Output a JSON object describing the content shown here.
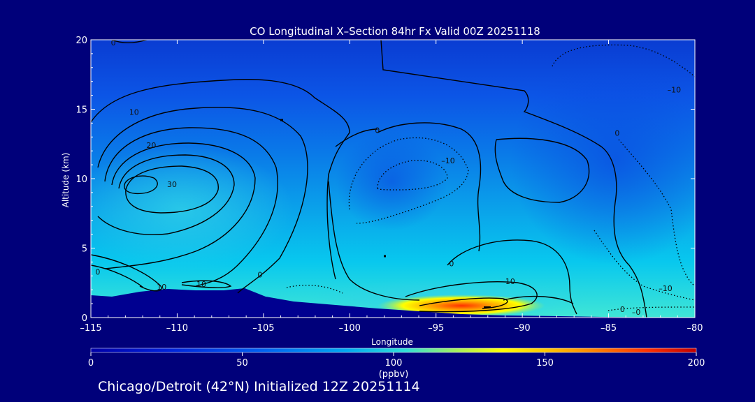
{
  "chart_data": {
    "type": "heatmap",
    "title": "CO Longitudinal X–Section 84hr  Fx Valid 00Z 20251118",
    "xlabel": "Longitude",
    "ylabel": "Altitude (km)",
    "xlim": [
      -115,
      -80
    ],
    "ylim": [
      0,
      20
    ],
    "x_ticks": [
      -115,
      -110,
      -105,
      -100,
      -95,
      -90,
      -85,
      -80
    ],
    "x_tick_labels": [
      "–115",
      "–110",
      "–105",
      "–100",
      "–95",
      "–90",
      "–85",
      "–80"
    ],
    "y_ticks": [
      0,
      5,
      10,
      15,
      20
    ],
    "y_tick_labels": [
      "0",
      "5",
      "10",
      "15",
      "20"
    ],
    "colorbar": {
      "min": 0,
      "max": 200,
      "ticks": [
        0,
        50,
        100,
        150,
        200
      ],
      "tick_labels": [
        "0",
        "50",
        "100",
        "150",
        "200"
      ],
      "unit": "(ppbv)",
      "colors": [
        "#0000a8",
        "#0030e0",
        "#0080f0",
        "#00c0f0",
        "#40e0d0",
        "#a0f060",
        "#ffff00",
        "#ffa000",
        "#ff3000",
        "#c00000"
      ]
    },
    "contour_labels": [
      {
        "text": "0",
        "lon": -113.7,
        "alt": 19.6
      },
      {
        "text": "10",
        "lon": -112.5,
        "alt": 14.6
      },
      {
        "text": "20",
        "lon": -111.5,
        "alt": 12.2
      },
      {
        "text": "30",
        "lon": -110.3,
        "alt": 9.4
      },
      {
        "text": "0",
        "lon": -114.6,
        "alt": 3.1
      },
      {
        "text": "10",
        "lon": -110.9,
        "alt": 2.0
      },
      {
        "text": "10",
        "lon": -108.6,
        "alt": 2.2
      },
      {
        "text": "0",
        "lon": -105.2,
        "alt": 2.9
      },
      {
        "text": "0",
        "lon": -98.4,
        "alt": 13.3
      },
      {
        "text": "–10",
        "lon": -94.3,
        "alt": 11.1
      },
      {
        "text": "0",
        "lon": -94.1,
        "alt": 3.7
      },
      {
        "text": "10",
        "lon": -90.7,
        "alt": 2.4
      },
      {
        "text": "0",
        "lon": -84.5,
        "alt": 13.1
      },
      {
        "text": "–10",
        "lon": -81.2,
        "alt": 16.2
      },
      {
        "text": "–10",
        "lon": -81.7,
        "alt": 1.9
      },
      {
        "text": "0",
        "lon": -84.2,
        "alt": 0.4
      },
      {
        "text": "–0",
        "lon": -83.4,
        "alt": 0.2
      }
    ]
  },
  "footer": "Chicago/Detroit (42°N) Initialized 12Z 20251114"
}
